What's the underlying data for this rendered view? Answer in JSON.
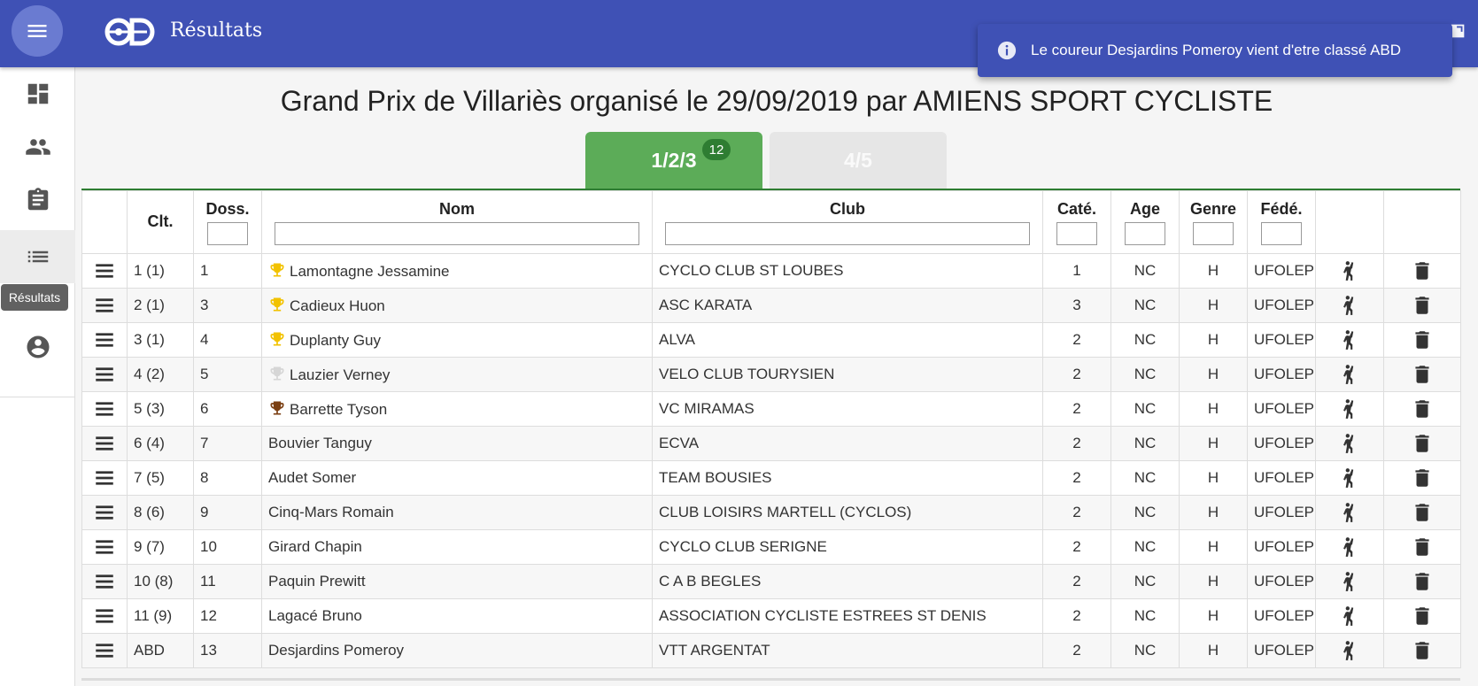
{
  "app": {
    "title": "Résultats"
  },
  "toast": {
    "message": "Le coureur Desjardins Pomeroy vient d'etre classé ABD",
    "icon": "info-icon"
  },
  "sidebar": {
    "items": [
      {
        "name": "dashboard",
        "icon": "dashboard-icon"
      },
      {
        "name": "people",
        "icon": "people-icon"
      },
      {
        "name": "assignment",
        "icon": "clipboard-icon"
      },
      {
        "name": "results",
        "icon": "list-icon",
        "active": true
      },
      {
        "name": "account",
        "icon": "account-circle-icon"
      }
    ],
    "tooltip": "Résultats"
  },
  "page": {
    "title": "Grand Prix de Villariès organisé le 29/09/2019 par AMIENS SPORT CYCLISTE"
  },
  "tabs": [
    {
      "label": "1/2/3",
      "badge": "12",
      "active": true,
      "color": "#5cac58"
    },
    {
      "label": "4/5",
      "active": false
    }
  ],
  "table": {
    "headers": {
      "clt": "Clt.",
      "doss": "Doss.",
      "nom": "Nom",
      "club": "Club",
      "cate": "Caté.",
      "age": "Age",
      "genre": "Genre",
      "fede": "Fédé."
    },
    "rows": [
      {
        "clt": "1 (1)",
        "doss": "1",
        "trophy": "gold",
        "nom": "Lamontagne Jessamine",
        "club": "CYCLO CLUB ST LOUBES",
        "cate": "1",
        "age": "NC",
        "genre": "H",
        "fede": "UFOLEP"
      },
      {
        "clt": "2 (1)",
        "doss": "3",
        "trophy": "gold",
        "nom": "Cadieux Huon",
        "club": "ASC KARATA",
        "cate": "3",
        "age": "NC",
        "genre": "H",
        "fede": "UFOLEP"
      },
      {
        "clt": "3 (1)",
        "doss": "4",
        "trophy": "gold",
        "nom": "Duplanty Guy",
        "club": "ALVA",
        "cate": "2",
        "age": "NC",
        "genre": "H",
        "fede": "UFOLEP"
      },
      {
        "clt": "4 (2)",
        "doss": "5",
        "trophy": "silver",
        "nom": "Lauzier Verney",
        "club": "VELO CLUB TOURYSIEN",
        "cate": "2",
        "age": "NC",
        "genre": "H",
        "fede": "UFOLEP"
      },
      {
        "clt": "5 (3)",
        "doss": "6",
        "trophy": "bronze",
        "nom": "Barrette Tyson",
        "club": "VC MIRAMAS",
        "cate": "2",
        "age": "NC",
        "genre": "H",
        "fede": "UFOLEP"
      },
      {
        "clt": "6 (4)",
        "doss": "7",
        "trophy": "",
        "nom": "Bouvier Tanguy",
        "club": "ECVA",
        "cate": "2",
        "age": "NC",
        "genre": "H",
        "fede": "UFOLEP"
      },
      {
        "clt": "7 (5)",
        "doss": "8",
        "trophy": "",
        "nom": "Audet Somer",
        "club": "TEAM BOUSIES",
        "cate": "2",
        "age": "NC",
        "genre": "H",
        "fede": "UFOLEP"
      },
      {
        "clt": "8 (6)",
        "doss": "9",
        "trophy": "",
        "nom": "Cinq-Mars Romain",
        "club": "CLUB LOISIRS MARTELL (CYCLOS)",
        "cate": "2",
        "age": "NC",
        "genre": "H",
        "fede": "UFOLEP"
      },
      {
        "clt": "9 (7)",
        "doss": "10",
        "trophy": "",
        "nom": "Girard Chapin",
        "club": "CYCLO CLUB SERIGNE",
        "cate": "2",
        "age": "NC",
        "genre": "H",
        "fede": "UFOLEP"
      },
      {
        "clt": "10 (8)",
        "doss": "11",
        "trophy": "",
        "nom": "Paquin Prewitt",
        "club": "C A B BEGLES",
        "cate": "2",
        "age": "NC",
        "genre": "H",
        "fede": "UFOLEP"
      },
      {
        "clt": "11 (9)",
        "doss": "12",
        "trophy": "",
        "nom": "Lagacé Bruno",
        "club": "ASSOCIATION CYCLISTE ESTREES ST DENIS",
        "cate": "2",
        "age": "NC",
        "genre": "H",
        "fede": "UFOLEP"
      },
      {
        "clt": "ABD",
        "doss": "13",
        "trophy": "",
        "nom": "Desjardins Pomeroy",
        "club": "VTT ARGENTAT",
        "cate": "2",
        "age": "NC",
        "genre": "H",
        "fede": "UFOLEP"
      }
    ]
  },
  "colors": {
    "primary": "#3f51b5",
    "tab_active": "#5cac58",
    "gold": "#f2c200",
    "silver": "#d6d6d6",
    "bronze": "#7b3f12"
  }
}
